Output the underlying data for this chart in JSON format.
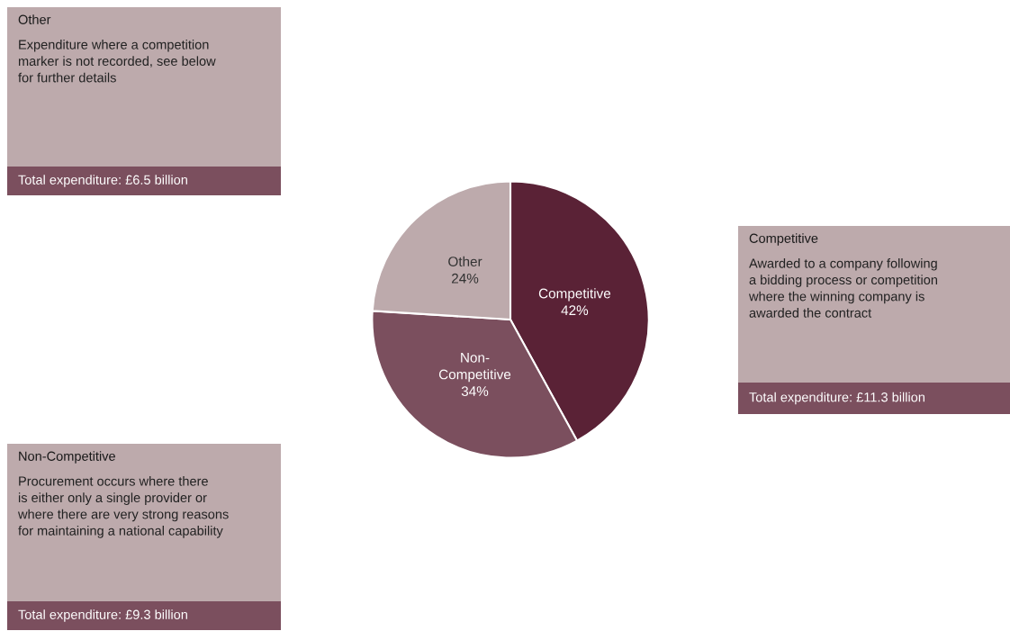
{
  "chart_data": {
    "type": "pie",
    "categories": [
      "Competitive",
      "Non-Competitive",
      "Other"
    ],
    "values": [
      42,
      34,
      24
    ],
    "value_labels": [
      "42%",
      "34%",
      "24%"
    ],
    "colors": [
      "#5a2236",
      "#7b4f5e",
      "#bdaaac"
    ],
    "annotations": [
      "Other",
      "Expenditure where a competition\nmarker is not recorded, see below\nfor further details",
      "Total expenditure: £6.5 billion",
      "Competitive",
      "Awarded to a company following\na bidding process or competition\nwhere the winning company is\nawarded the contract",
      "Total expenditure: £11.3 billion",
      "Non-Competitive",
      "Procurement occurs where there\nis either only a single provider or\nwhere there are very strong reasons\nfor maintaining a national capability",
      "Total expenditure: £9.3 billion"
    ]
  }
}
